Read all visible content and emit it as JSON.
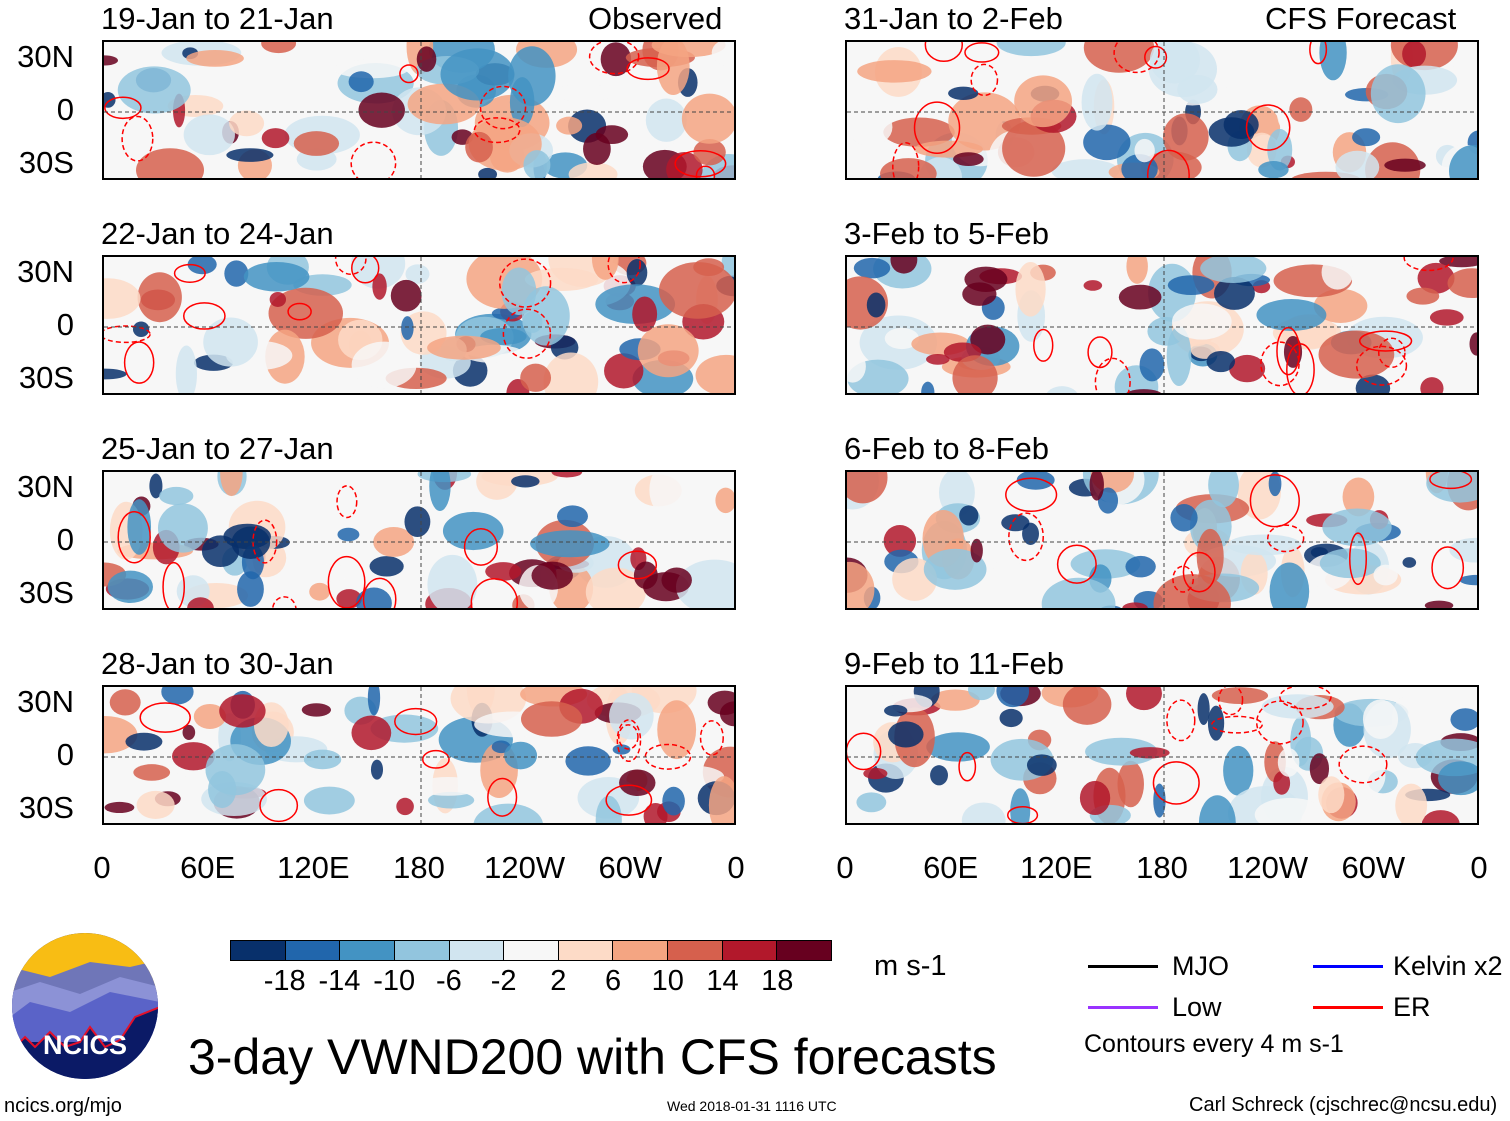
{
  "left_header_label": "Observed",
  "right_header_label": "CFS Forecast",
  "panels_left": [
    "19-Jan to 21-Jan",
    "22-Jan to 24-Jan",
    "25-Jan to 27-Jan",
    "28-Jan to 30-Jan"
  ],
  "panels_right": [
    "31-Jan to 2-Feb",
    "3-Feb to 5-Feb",
    "6-Feb to 8-Feb",
    "9-Feb to 11-Feb"
  ],
  "lat_labels": [
    "30N",
    "0",
    "30S"
  ],
  "lon_labels": [
    "0",
    "60E",
    "120E",
    "180",
    "120W",
    "60W",
    "0"
  ],
  "colorbar": {
    "colors": [
      "#08306b",
      "#2166ac",
      "#4393c3",
      "#92c5de",
      "#d1e5f0",
      "#f7f7f7",
      "#fddbc7",
      "#f4a582",
      "#d6604d",
      "#b2182b",
      "#67001f"
    ],
    "labels": [
      "-18",
      "-14",
      "-10",
      "-6",
      "-2",
      "2",
      "6",
      "10",
      "14",
      "18"
    ],
    "units": "m s-1"
  },
  "legend": {
    "items": [
      {
        "label": "MJO",
        "color": "#000000"
      },
      {
        "label": "Kelvin x2",
        "color": "#0000ff"
      },
      {
        "label": "Low",
        "color": "#9933ff"
      },
      {
        "label": "ER",
        "color": "#ff0000"
      }
    ],
    "note": "Contours every 4 m s-1"
  },
  "title": "3-day VWND200 with CFS forecasts",
  "logo_text": "NCICS",
  "footer": {
    "url": "ncics.org/mjo",
    "timestamp": "Wed 2018-01-31 1116 UTC",
    "author": "Carl Schreck (cjschrec@ncsu.edu)"
  }
}
